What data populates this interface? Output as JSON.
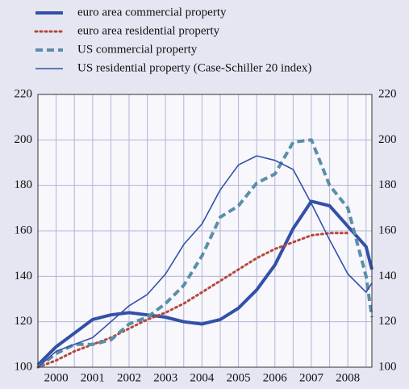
{
  "chart_data": {
    "type": "line",
    "series": [
      {
        "name": "euro area commercial property",
        "color": "#3350a8",
        "width": 4,
        "dash": "solid",
        "x": [
          2000,
          2000.5,
          2001,
          2001.5,
          2002,
          2002.5,
          2003,
          2003.5,
          2004,
          2004.5,
          2005,
          2005.5,
          2006,
          2006.5,
          2007,
          2007.5,
          2008,
          2008.5,
          2009,
          2009.16
        ],
        "values": [
          101,
          109,
          115,
          121,
          123,
          124,
          123,
          122,
          120,
          119,
          121,
          126,
          134,
          145,
          161,
          173,
          171,
          162,
          153,
          143
        ]
      },
      {
        "name": "euro area residential property",
        "color": "#b5483b",
        "width": 3,
        "dash": "dot",
        "x": [
          2000,
          2000.5,
          2001,
          2001.5,
          2002,
          2002.5,
          2003,
          2003.5,
          2004,
          2004.5,
          2005,
          2005.5,
          2006,
          2006.5,
          2007,
          2007.5,
          2008,
          2008.5
        ],
        "values": [
          100,
          103,
          107,
          110,
          113,
          117,
          121,
          124,
          128,
          133,
          138,
          143,
          148,
          152,
          155,
          158,
          159,
          159
        ]
      },
      {
        "name": "US commercial property",
        "color": "#5b8ea8",
        "width": 4,
        "dash": "dash",
        "x": [
          2000,
          2000.5,
          2001,
          2001.5,
          2002,
          2002.5,
          2003,
          2003.5,
          2004,
          2004.5,
          2005,
          2005.5,
          2006,
          2006.5,
          2007,
          2007.5,
          2008,
          2008.5,
          2009,
          2009.16
        ],
        "values": [
          100,
          106,
          110,
          110,
          112,
          119,
          122,
          128,
          136,
          149,
          166,
          171,
          181,
          185,
          199,
          200,
          180,
          170,
          140,
          122
        ]
      },
      {
        "name": "US residential property (Case-Schiller 20 index)",
        "color": "#3350a8",
        "width": 1.6,
        "dash": "solid",
        "x": [
          2000,
          2000.5,
          2001,
          2001.5,
          2002,
          2002.5,
          2003,
          2003.5,
          2004,
          2004.5,
          2005,
          2005.5,
          2006,
          2006.5,
          2007,
          2007.5,
          2008,
          2008.5,
          2009,
          2009.16
        ],
        "values": [
          100,
          107,
          110,
          113,
          120,
          127,
          132,
          141,
          154,
          163,
          178,
          189,
          193,
          191,
          187,
          172,
          156,
          141,
          133,
          137
        ]
      }
    ],
    "xlim": [
      2000,
      2009.16
    ],
    "xticks": [
      {
        "value": 2000.5,
        "label": "2000"
      },
      {
        "value": 2001.5,
        "label": "2001"
      },
      {
        "value": 2002.5,
        "label": "2002"
      },
      {
        "value": 2003.5,
        "label": "2003"
      },
      {
        "value": 2004.5,
        "label": "2004"
      },
      {
        "value": 2005.5,
        "label": "2005"
      },
      {
        "value": 2006.5,
        "label": "2006"
      },
      {
        "value": 2007.5,
        "label": "2007"
      },
      {
        "value": 2008.5,
        "label": "2008"
      }
    ],
    "xgrid": [
      2000,
      2000.5,
      2001,
      2001.5,
      2002,
      2002.5,
      2003,
      2003.5,
      2004,
      2004.5,
      2005,
      2005.5,
      2006,
      2006.5,
      2007,
      2007.5,
      2008,
      2008.5,
      2009
    ],
    "ylim": [
      100,
      220
    ],
    "yticks": [
      100,
      120,
      140,
      160,
      180,
      200,
      220
    ],
    "y2lim": [
      100,
      220
    ],
    "y2ticks": [
      100,
      120,
      140,
      160,
      180,
      200,
      220
    ],
    "grid": true
  }
}
